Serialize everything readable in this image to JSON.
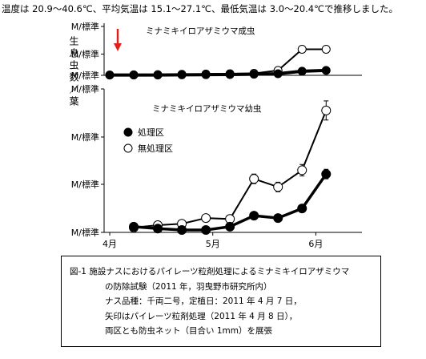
{
  "header_text": "温度は 20.9～40.6℃、平均気温は 15.1～27.1℃、最低気温は 3.0～20.4℃で推移しました。",
  "chart_data": [
    {
      "type": "line",
      "title": "ミナミキイロアザミウマ成虫",
      "ylabel": "生息虫数／葉",
      "y_tick_labels": [
        "M/標準",
        "M/標準",
        "M/標準"
      ],
      "arrow_marker": {
        "x": 5,
        "meaning": "パイレーツ粒剤処理"
      },
      "x": [
        0,
        7,
        14,
        21,
        28,
        35,
        42,
        49,
        56,
        63
      ],
      "ylim": [
        0,
        3
      ],
      "series": [
        {
          "name": "処理区",
          "marker": "filled-circle",
          "values": [
            0.02,
            0.02,
            0.02,
            0.03,
            0.04,
            0.05,
            0.07,
            0.1,
            0.25,
            0.3
          ]
        },
        {
          "name": "無処理区",
          "marker": "open-circle",
          "values": [
            0.02,
            0.03,
            0.04,
            0.06,
            0.08,
            0.1,
            0.12,
            0.3,
            1.6,
            1.6
          ]
        }
      ]
    },
    {
      "type": "line",
      "title": "ミナミキイロアザミウマ幼虫",
      "ylabel": "生息虫数／葉",
      "y_tick_labels": [
        "M/標準",
        "M/標準",
        "M/標準",
        "M/標準"
      ],
      "x_tick_labels": [
        {
          "x": 7,
          "label": "4月"
        },
        {
          "x": 37,
          "label": "5月"
        },
        {
          "x": 67,
          "label": "6月"
        }
      ],
      "x": [
        7,
        14,
        21,
        28,
        35,
        42,
        49,
        56,
        63,
        70
      ],
      "ylim": [
        0,
        3
      ],
      "legend": "upper-left",
      "series": [
        {
          "name": "処理区",
          "marker": "filled-circle",
          "values": [
            0.12,
            0.08,
            0.05,
            0.05,
            0.12,
            0.35,
            0.3,
            0.5,
            1.22,
            0
          ],
          "errors": [
            0,
            0,
            0,
            0,
            0,
            0.05,
            0.05,
            0.07,
            0.1,
            0
          ]
        },
        {
          "name": "無処理区",
          "marker": "open-circle",
          "values": [
            0.1,
            0.15,
            0.18,
            0.3,
            0.28,
            1.12,
            0.95,
            1.3,
            2.55,
            0
          ],
          "errors": [
            0,
            0,
            0,
            0,
            0,
            0.1,
            0.1,
            0.12,
            0.2,
            0
          ]
        }
      ]
    }
  ],
  "caption": {
    "fig_label": "図-1",
    "title_line1": "施設ナスにおけるパイレーツ粒剤処理によるミナミキイロアザミウマ",
    "title_line2": "の防除試験（2011 年，羽曳野市研究所内）",
    "note1": "ナス品種：千両二号，定植日：2011 年 4 月 7 日，",
    "note2": "矢印はパイレーツ粒剤処理（2011 年 4 月 8 日），",
    "note3": "両区とも防虫ネット（目合い 1mm）を展張"
  },
  "colors": {
    "arrow": "#e0201b",
    "line": "#000000",
    "open_marker_fill": "#ffffff"
  }
}
